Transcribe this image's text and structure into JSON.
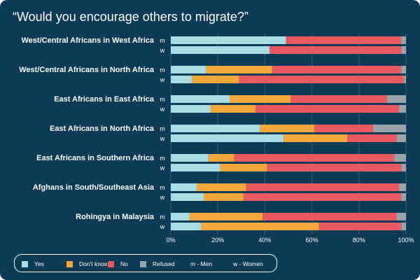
{
  "chart_data": {
    "type": "bar",
    "orientation": "horizontal",
    "stacked": true,
    "title": "“Would you encourage others to migrate?”",
    "xlim": [
      0,
      100
    ],
    "xticks": [
      "0%",
      "20%",
      "40%",
      "60%",
      "80%",
      "100%"
    ],
    "grid": "vertical",
    "legend_position": "bottom-left",
    "categories": [
      "West/Central Africans in West Africa",
      "West/Central Africans in North Africa",
      "East Africans in East Africa",
      "East Africans in North Africa",
      "East Africans in Southern Africa",
      "Afghans in South/Southeast Asia",
      "Rohingya in Malaysia"
    ],
    "sub_labels": [
      "m",
      "w"
    ],
    "colors": {
      "Yes": "#a8dde6",
      "Don't know": "#f2a83b",
      "No": "#e85a5f",
      "Refused": "#9aa4ab",
      "background": "#0d3b56"
    },
    "series": [
      {
        "name": "Yes",
        "values_m": [
          49,
          15,
          25,
          38,
          16,
          11,
          8
        ],
        "values_w": [
          42,
          9,
          17,
          48,
          21,
          14,
          13
        ]
      },
      {
        "name": "Don't know",
        "values_m": [
          0,
          28,
          26,
          23,
          11,
          21,
          31
        ],
        "values_w": [
          0,
          20,
          19,
          27,
          20,
          17,
          50
        ]
      },
      {
        "name": "No",
        "values_m": [
          49,
          55,
          41,
          25,
          68,
          65,
          57
        ],
        "values_w": [
          56,
          70,
          61,
          21,
          57,
          67,
          35
        ]
      },
      {
        "name": "Refused",
        "values_m": [
          2,
          2,
          8,
          14,
          5,
          3,
          4
        ],
        "values_w": [
          2,
          1,
          3,
          4,
          2,
          2,
          2
        ]
      }
    ]
  },
  "legend": {
    "items": [
      "Yes",
      "Don't know",
      "No",
      "Refused"
    ],
    "notes": [
      "m - Men",
      "w - Women"
    ]
  }
}
